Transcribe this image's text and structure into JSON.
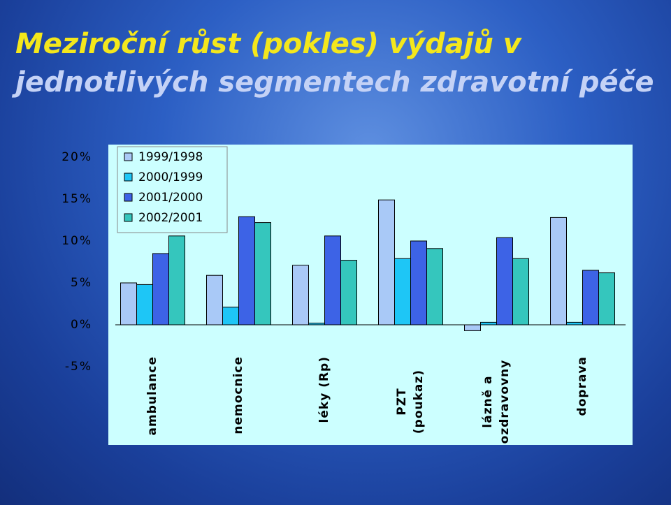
{
  "chart_data": {
    "type": "bar",
    "title": [
      "Meziroční růst (pokles) výdajů v",
      "jednotlivých segmentech zdravotní péče"
    ],
    "categories": [
      "ambulance",
      "nemocnice",
      "léky (Rp)",
      "PZT (poukaz)",
      "lázně a ozdravovny",
      "doprava"
    ],
    "series": [
      {
        "name": "1999/1998",
        "color": "#a9c9f7",
        "values": [
          5.0,
          5.9,
          7.1,
          14.9,
          -0.7,
          12.8
        ]
      },
      {
        "name": "2000/1999",
        "color": "#1ec6f6",
        "values": [
          4.8,
          2.1,
          0.2,
          7.9,
          0.3,
          0.3
        ]
      },
      {
        "name": "2001/2000",
        "color": "#3d63e6",
        "values": [
          8.5,
          12.9,
          10.6,
          10.0,
          10.4,
          6.5
        ]
      },
      {
        "name": "2002/2001",
        "color": "#35c6bd",
        "values": [
          10.6,
          12.2,
          7.7,
          9.1,
          7.9,
          6.2
        ]
      }
    ],
    "ylim": [
      -5,
      20
    ],
    "yticks": [
      {
        "value": -5,
        "label": "-5%"
      },
      {
        "value": 0,
        "label": "0%"
      },
      {
        "value": 5,
        "label": "5%"
      },
      {
        "value": 10,
        "label": "10%"
      },
      {
        "value": 15,
        "label": "15%"
      },
      {
        "value": 20,
        "label": "20%"
      }
    ],
    "legend": "top-left"
  }
}
